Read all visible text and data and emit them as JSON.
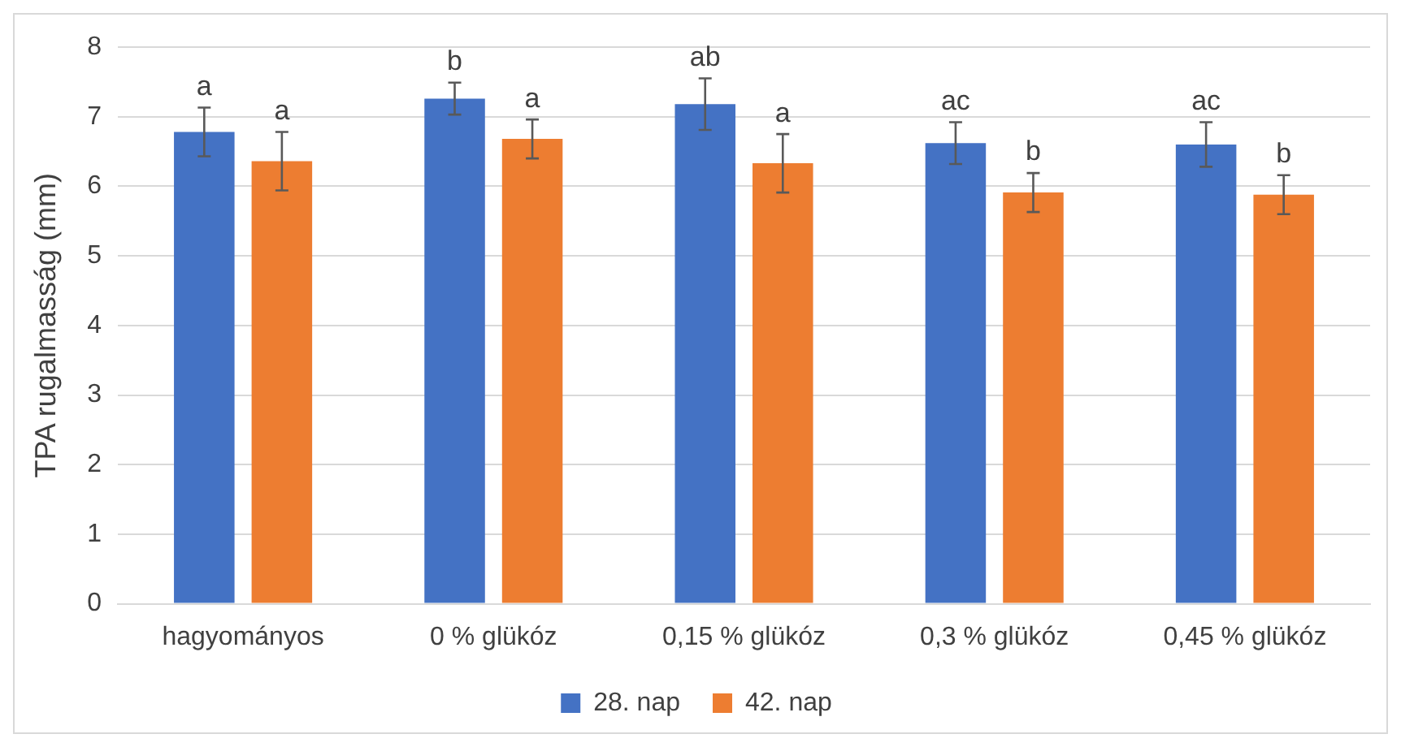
{
  "chart_data": {
    "type": "bar",
    "ylabel": "TPA rugalmasság (mm)",
    "categories": [
      "hagyományos",
      "0 % glükóz",
      "0,15 % glükóz",
      "0,3 % glükóz",
      "0,45 % glükóz"
    ],
    "series": [
      {
        "name": "28. nap",
        "color": "#4472c4",
        "values": [
          6.78,
          7.26,
          7.18,
          6.62,
          6.6
        ],
        "errors": [
          0.35,
          0.23,
          0.37,
          0.3,
          0.32
        ]
      },
      {
        "name": "42. nap",
        "color": "#ed7d31",
        "values": [
          6.36,
          6.68,
          6.33,
          5.91,
          5.88
        ],
        "errors": [
          0.42,
          0.28,
          0.42,
          0.28,
          0.28
        ]
      }
    ],
    "annotations": [
      "a",
      "a",
      "b",
      "a",
      "ab",
      "a",
      "ac",
      "b",
      "ac",
      "b"
    ],
    "ylim": [
      0,
      8
    ],
    "yticks": [
      0,
      1,
      2,
      3,
      4,
      5,
      6,
      7,
      8
    ],
    "grid": "y",
    "legend": "bottom"
  }
}
